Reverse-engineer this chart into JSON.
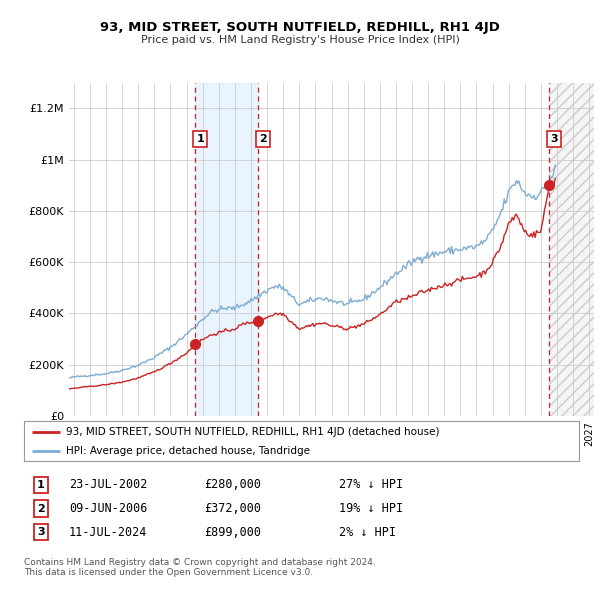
{
  "title": "93, MID STREET, SOUTH NUTFIELD, REDHILL, RH1 4JD",
  "subtitle": "Price paid vs. HM Land Registry's House Price Index (HPI)",
  "legend_line1": "93, MID STREET, SOUTH NUTFIELD, REDHILL, RH1 4JD (detached house)",
  "legend_line2": "HPI: Average price, detached house, Tandridge",
  "transaction1_label": "1",
  "transaction1_date": "23-JUL-2002",
  "transaction1_price": "£280,000",
  "transaction1_hpi": "27% ↓ HPI",
  "transaction2_label": "2",
  "transaction2_date": "09-JUN-2006",
  "transaction2_price": "£372,000",
  "transaction2_hpi": "19% ↓ HPI",
  "transaction3_label": "3",
  "transaction3_date": "11-JUL-2024",
  "transaction3_price": "£899,000",
  "transaction3_hpi": "2% ↓ HPI",
  "footer": "Contains HM Land Registry data © Crown copyright and database right 2024.\nThis data is licensed under the Open Government Licence v3.0.",
  "hpi_color": "#7dadd4",
  "price_color": "#cc2222",
  "background_color": "#ffffff",
  "plot_bg_color": "#ffffff",
  "grid_color": "#cccccc",
  "shade1_color": "#ddeeff",
  "ylim": [
    0,
    1300000
  ],
  "yticks": [
    0,
    200000,
    400000,
    600000,
    800000,
    1000000,
    1200000
  ],
  "xlim_start": 1994.7,
  "xlim_end": 2027.3,
  "trans1_x": 2002.55,
  "trans2_x": 2006.44,
  "trans3_x": 2024.53
}
